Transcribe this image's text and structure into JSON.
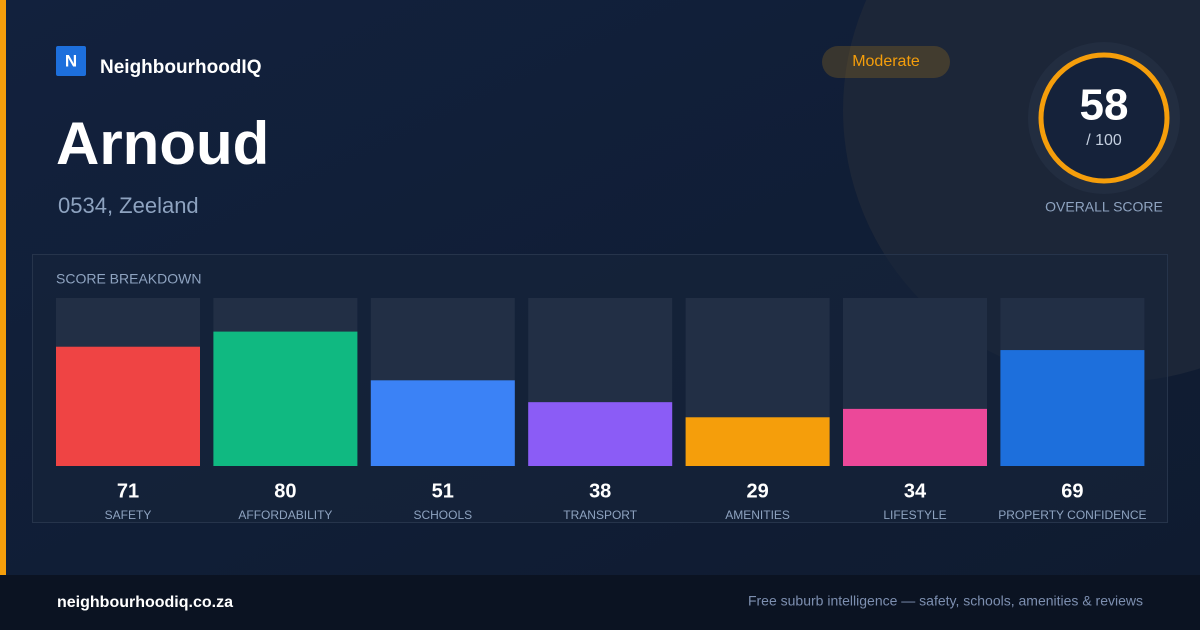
{
  "brand": "NeighbourhoodIQ",
  "logo_letter": "N",
  "suburb": "Arnoud",
  "location": "0534, Zeeland",
  "rating": "Moderate",
  "overall": {
    "score": "58",
    "out_of": "/ 100",
    "label": "OVERALL SCORE"
  },
  "chart_data": {
    "type": "bar",
    "title": "SCORE BREAKDOWN",
    "categories": [
      "SAFETY",
      "AFFORDABILITY",
      "SCHOOLS",
      "TRANSPORT",
      "AMENITIES",
      "LIFESTYLE",
      "PROPERTY CONFIDENCE"
    ],
    "values": [
      71,
      80,
      51,
      38,
      29,
      34,
      69
    ],
    "colors": [
      "#ef4444",
      "#10b981",
      "#3b82f6",
      "#8b5cf6",
      "#f59e0b",
      "#ec4899",
      "#1d6fdc"
    ],
    "ylim": [
      0,
      100
    ]
  },
  "footer": {
    "site": "neighbourhoodiq.co.za",
    "tagline": "Free suburb intelligence — safety, schools, amenities & reviews"
  }
}
